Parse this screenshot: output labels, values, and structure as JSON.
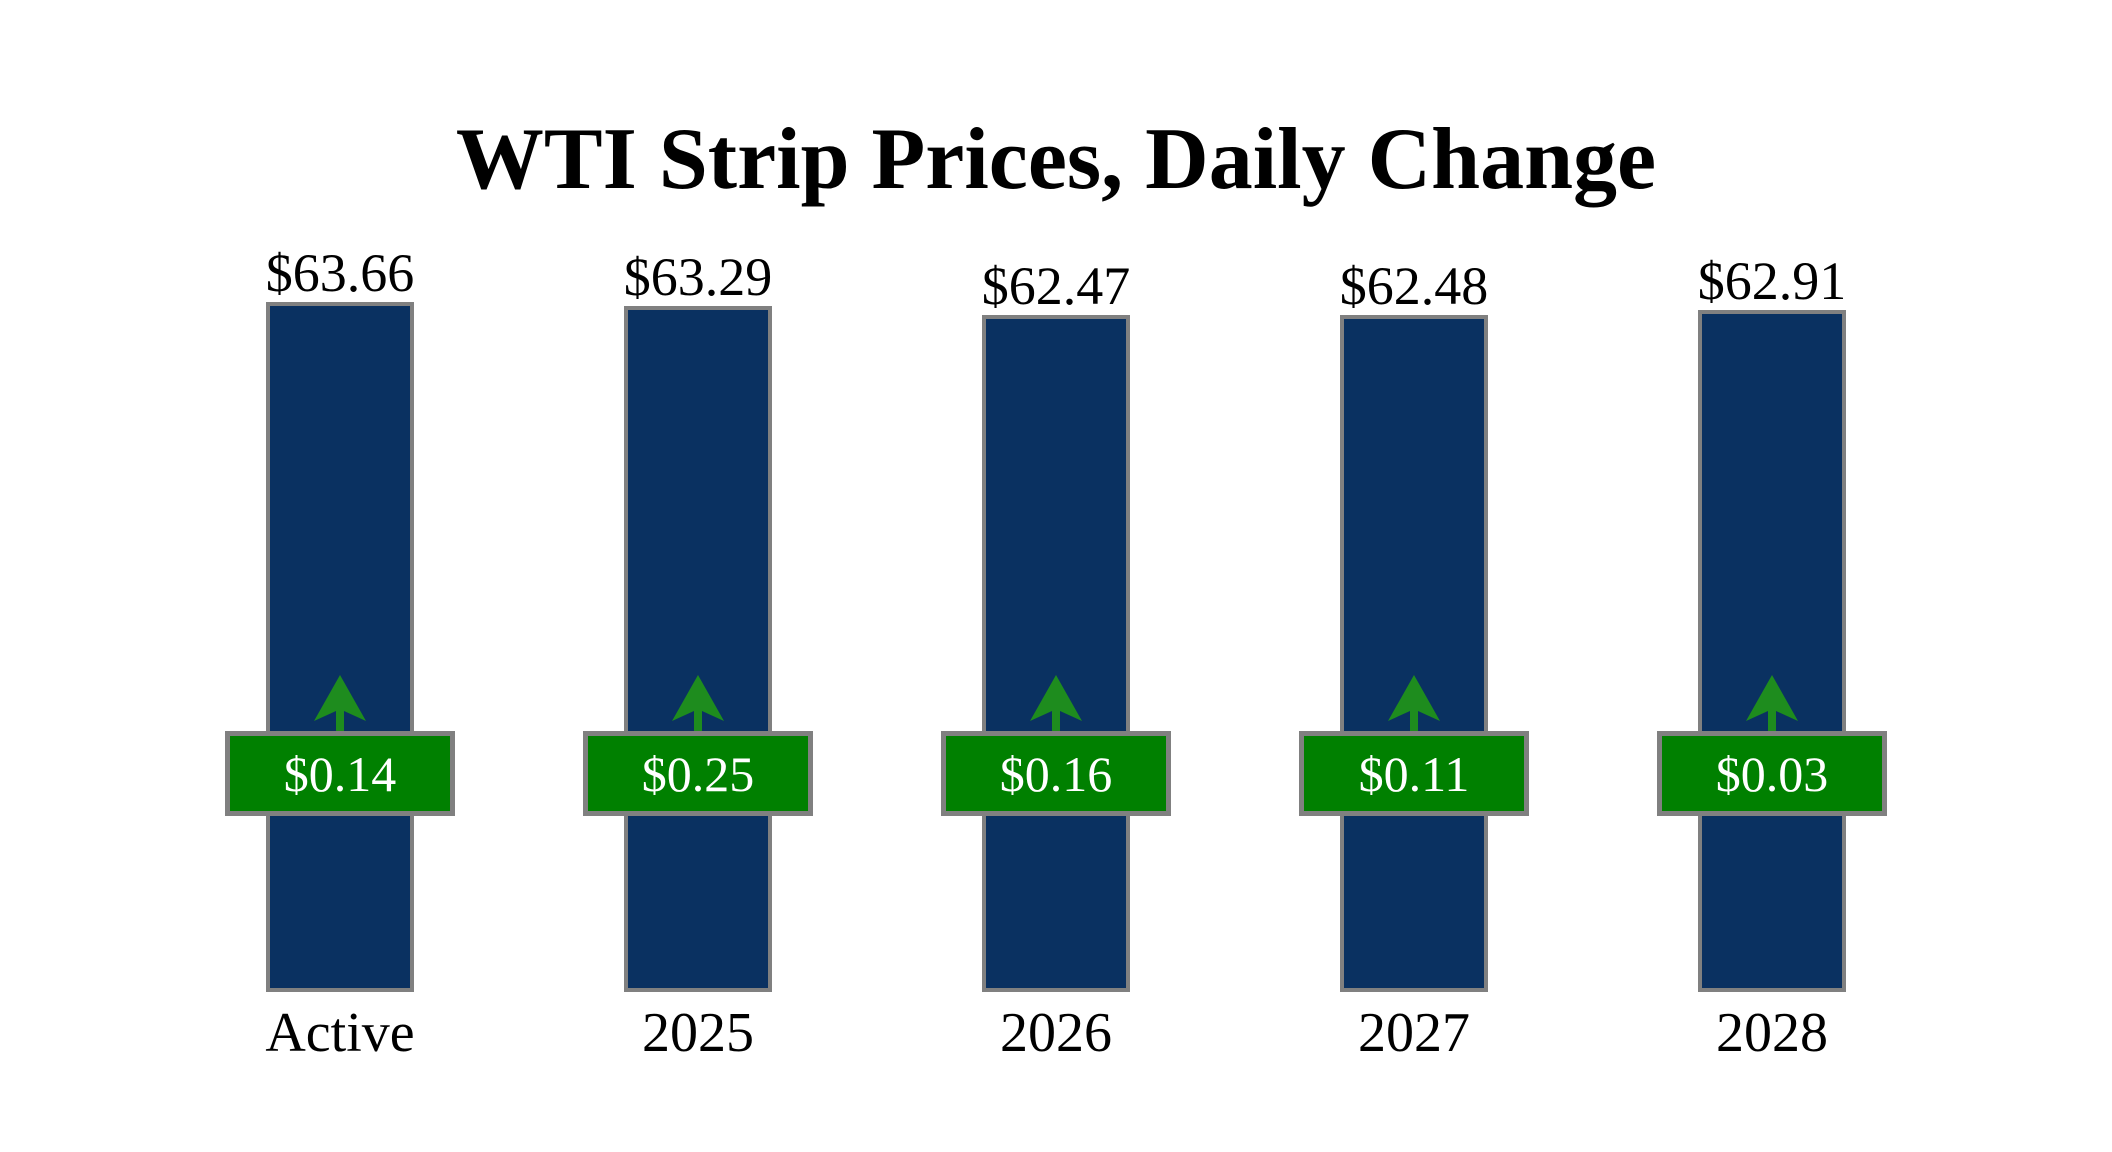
{
  "title": "WTI Strip Prices, Daily Change",
  "chart_data": {
    "type": "bar",
    "title": "WTI Strip Prices, Daily Change",
    "categories": [
      "Active",
      "2025",
      "2026",
      "2027",
      "2028"
    ],
    "values": [
      63.66,
      63.29,
      62.47,
      62.48,
      62.91
    ],
    "changes": [
      0.14,
      0.25,
      0.16,
      0.11,
      0.03
    ],
    "change_direction": "up",
    "axes_visible": false,
    "gridlines": false,
    "legend": "none",
    "ylim": [
      0,
      66
    ],
    "items": [
      {
        "category": "Active",
        "price": 63.66,
        "price_label": "$63.66",
        "change": 0.14,
        "change_label": "$0.14",
        "direction": "up"
      },
      {
        "category": "2025",
        "price": 63.29,
        "price_label": "$63.29",
        "change": 0.25,
        "change_label": "$0.25",
        "direction": "up"
      },
      {
        "category": "2026",
        "price": 62.47,
        "price_label": "$62.47",
        "change": 0.16,
        "change_label": "$0.16",
        "direction": "up"
      },
      {
        "category": "2027",
        "price": 62.48,
        "price_label": "$62.48",
        "change": 0.11,
        "change_label": "$0.11",
        "direction": "up"
      },
      {
        "category": "2028",
        "price": 62.91,
        "price_label": "$62.91",
        "change": 0.03,
        "change_label": "$0.03",
        "direction": "up"
      }
    ]
  },
  "colors": {
    "background": "#ffffff",
    "text": "#000000",
    "bar_fill": "#0a3161",
    "bar_border": "#808080",
    "badge_fill": "#008000",
    "badge_border": "#808080",
    "badge_text": "#ffffff",
    "arrow": "#1e8c1e"
  }
}
